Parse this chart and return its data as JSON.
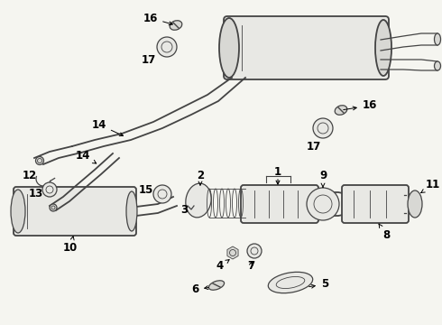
{
  "bg_color": "#f5f5f0",
  "line_color": "#444444",
  "label_color": "#000000",
  "font_size": 8.5,
  "bold_font": "bold",
  "fig_w": 4.9,
  "fig_h": 3.6,
  "dpi": 100
}
